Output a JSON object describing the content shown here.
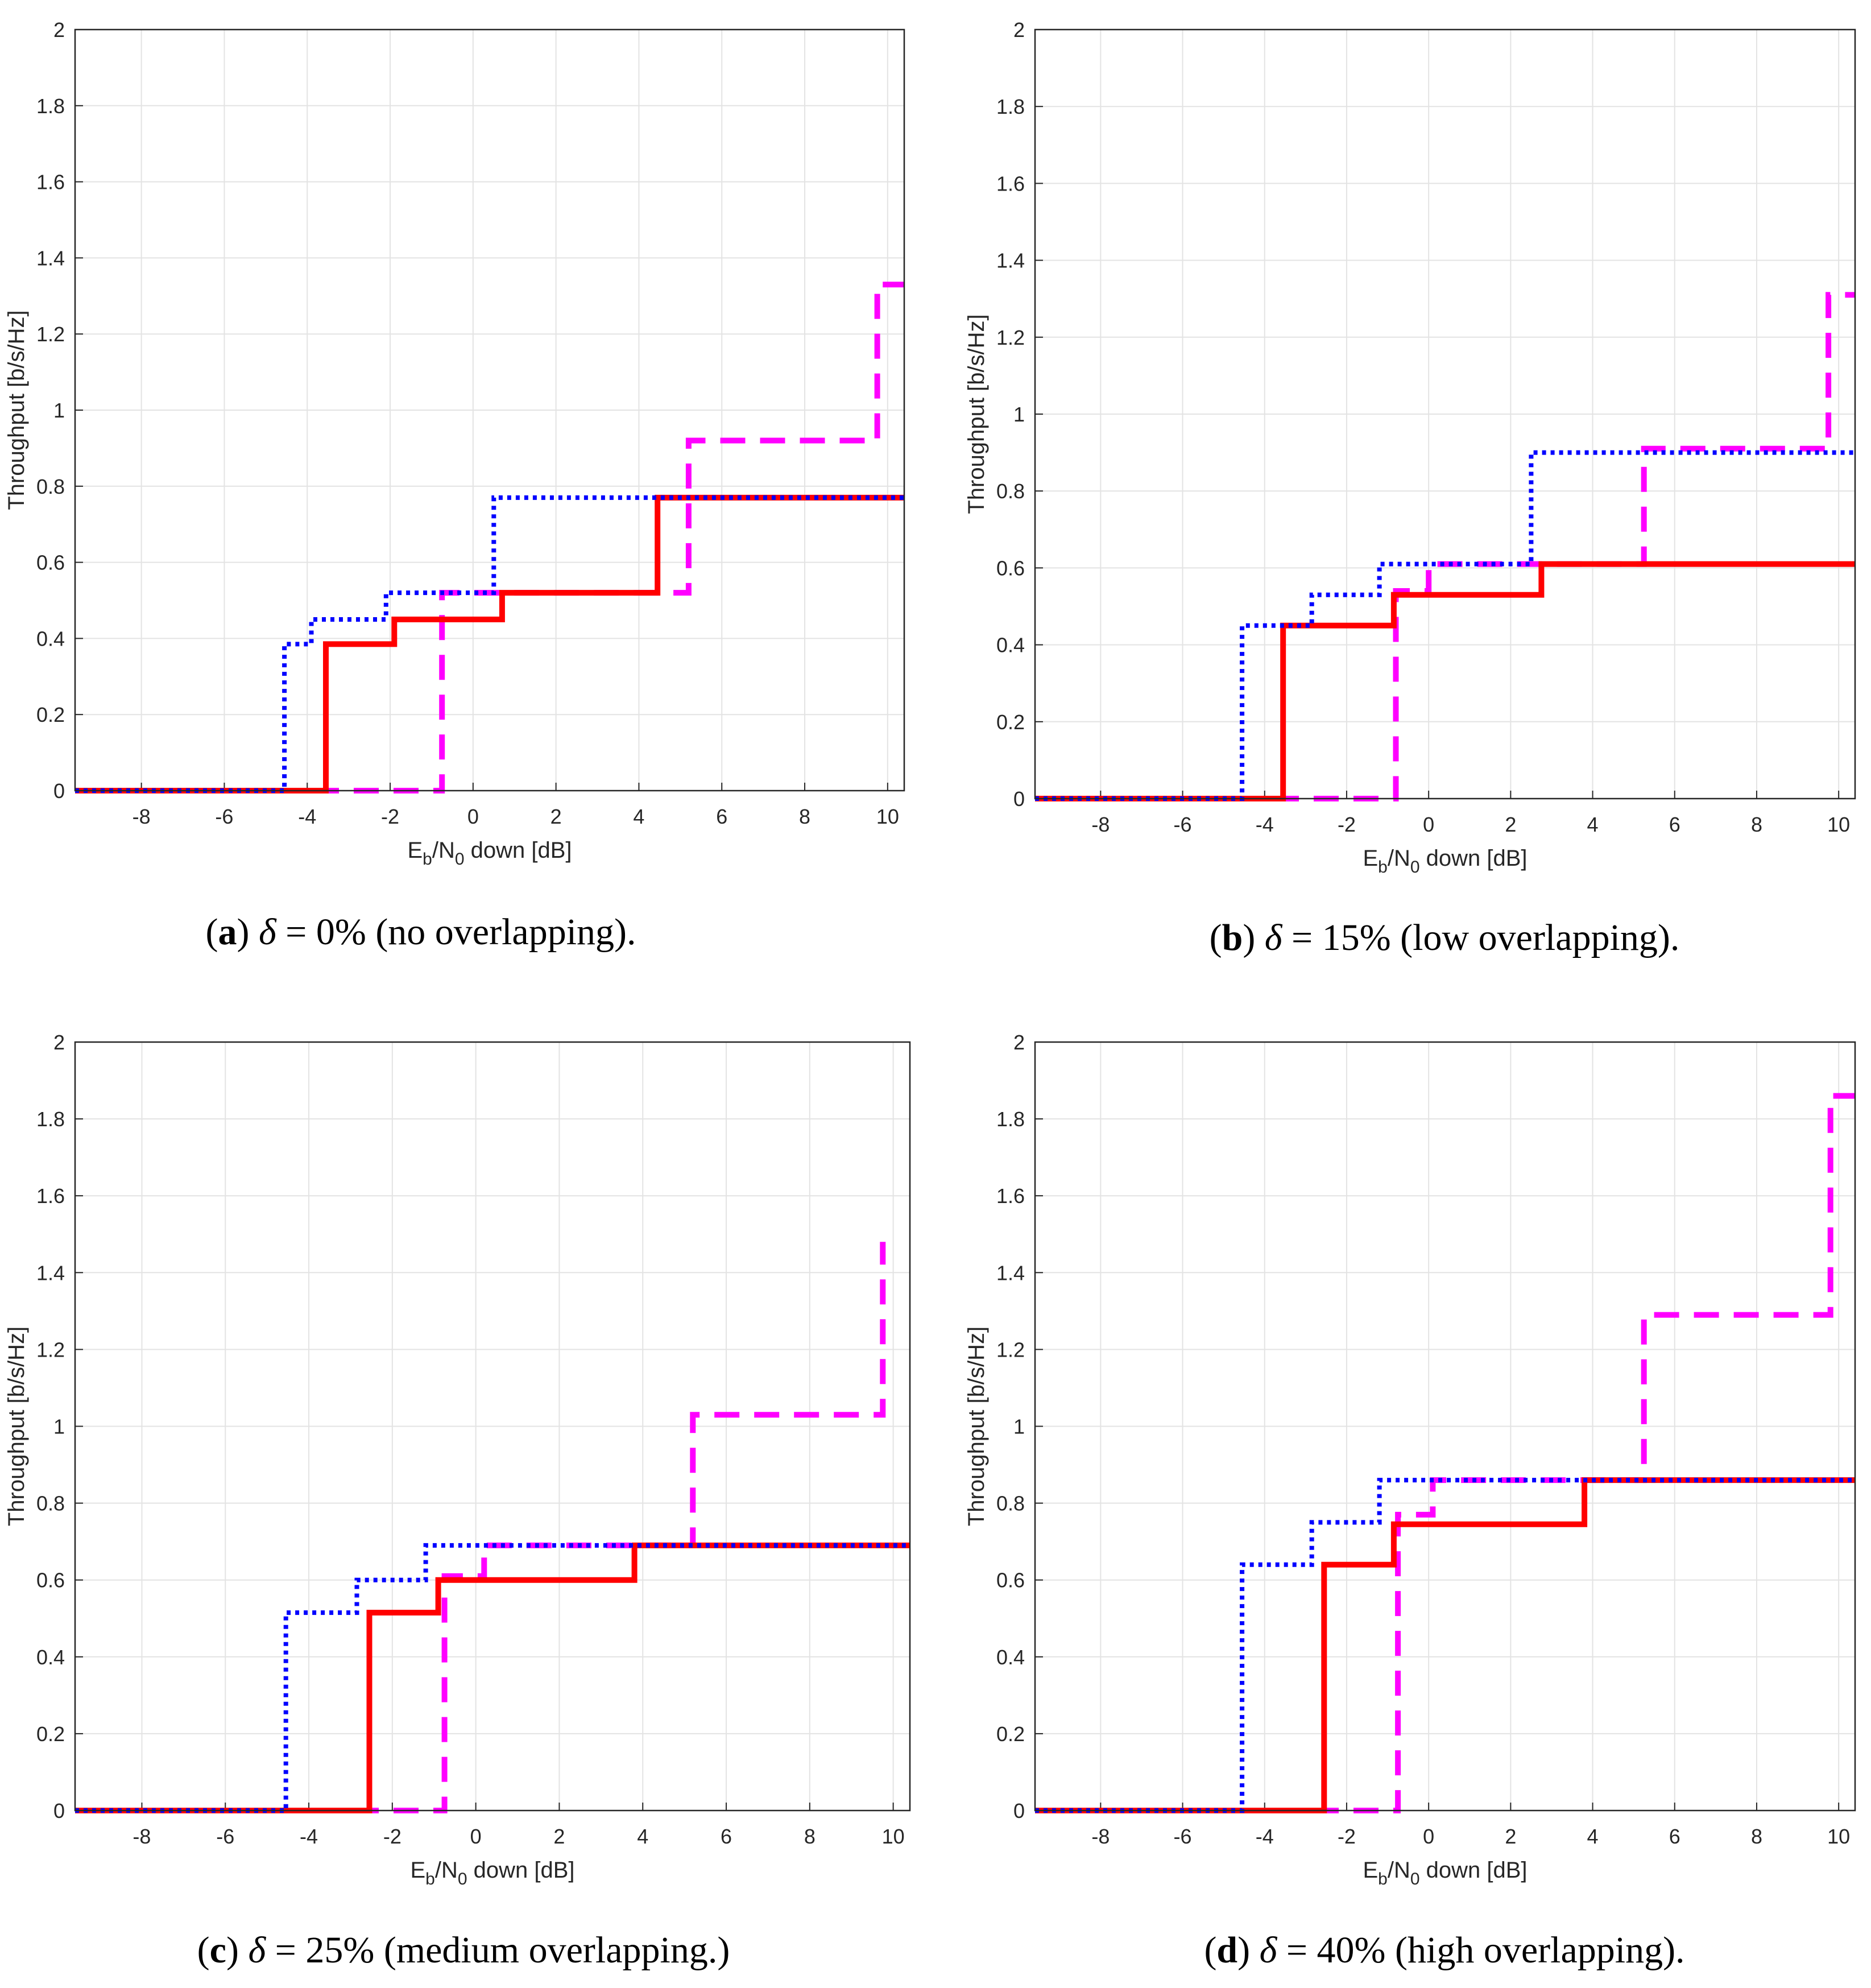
{
  "chart_data": [
    {
      "type": "line",
      "panel": "a",
      "caption": {
        "letter": "a",
        "delta_symbol": "δ",
        "text": " = 0% (no overlapping)."
      },
      "xlabel": {
        "main": "E",
        "sub1": "b",
        "mid": "/N",
        "sub2": "0",
        "tail": " down [dB]"
      },
      "ylabel": "Throughput [b/s/Hz]",
      "xlim": [
        -9.6,
        10.4
      ],
      "ylim": [
        0,
        2
      ],
      "xticks": [
        "-8",
        "-6",
        "-4",
        "-2",
        "0",
        "2",
        "4",
        "6",
        "8",
        "10"
      ],
      "yticks": [
        "0",
        "0.2",
        "0.4",
        "0.6",
        "0.8",
        "1",
        "1.2",
        "1.4",
        "1.6",
        "1.8",
        "2"
      ],
      "grid": true,
      "series": [
        {
          "name": "blue-dotted",
          "color": "#0000ff",
          "style": "dotted",
          "x": [
            -9.6,
            -4.55,
            -4.55,
            -3.9,
            -3.9,
            -2.1,
            -2.1,
            0.5,
            0.5,
            10.4
          ],
          "y": [
            0,
            0,
            0.385,
            0.385,
            0.45,
            0.45,
            0.52,
            0.52,
            0.77,
            0.77
          ]
        },
        {
          "name": "red-solid",
          "color": "#ff0000",
          "style": "solid",
          "x": [
            -9.6,
            -3.55,
            -3.55,
            -1.9,
            -1.9,
            0.7,
            0.7,
            4.45,
            4.45,
            10.4
          ],
          "y": [
            0,
            0,
            0.385,
            0.385,
            0.45,
            0.45,
            0.52,
            0.52,
            0.77,
            0.77
          ]
        },
        {
          "name": "magenta-dashed",
          "color": "#ff00ff",
          "style": "dashed",
          "x": [
            -9.6,
            -0.75,
            -0.75,
            5.2,
            5.2,
            9.75,
            9.75,
            10.4
          ],
          "y": [
            0,
            0,
            0.52,
            0.52,
            0.92,
            0.92,
            1.33,
            1.33
          ]
        }
      ]
    },
    {
      "type": "line",
      "panel": "b",
      "caption": {
        "letter": "b",
        "delta_symbol": "δ",
        "text": " = 15% (low overlapping)."
      },
      "xlabel": {
        "main": "E",
        "sub1": "b",
        "mid": "/N",
        "sub2": "0",
        "tail": " down [dB]"
      },
      "ylabel": "Throughput [b/s/Hz]",
      "xlim": [
        -9.6,
        10.4
      ],
      "ylim": [
        0,
        2
      ],
      "xticks": [
        "-8",
        "-6",
        "-4",
        "-2",
        "0",
        "2",
        "4",
        "6",
        "8",
        "10"
      ],
      "yticks": [
        "0",
        "0.2",
        "0.4",
        "0.6",
        "0.8",
        "1",
        "1.2",
        "1.4",
        "1.6",
        "1.8",
        "2"
      ],
      "grid": true,
      "series": [
        {
          "name": "blue-dotted",
          "color": "#0000ff",
          "style": "dotted",
          "x": [
            -9.6,
            -4.55,
            -4.55,
            -2.85,
            -2.85,
            -1.2,
            -1.2,
            2.5,
            2.5,
            10.4
          ],
          "y": [
            0,
            0,
            0.45,
            0.45,
            0.53,
            0.53,
            0.61,
            0.61,
            0.9,
            0.9
          ]
        },
        {
          "name": "red-solid",
          "color": "#ff0000",
          "style": "solid",
          "x": [
            -9.6,
            -3.55,
            -3.55,
            -0.85,
            -0.85,
            2.75,
            2.75,
            10.4
          ],
          "y": [
            0,
            0,
            0.45,
            0.45,
            0.53,
            0.53,
            0.61,
            0.61
          ]
        },
        {
          "name": "magenta-dashed",
          "color": "#ff00ff",
          "style": "dashed",
          "x": [
            -9.6,
            -0.8,
            -0.8,
            0,
            0,
            5.25,
            5.25,
            9.75,
            9.75,
            10.4
          ],
          "y": [
            0,
            0,
            0.54,
            0.54,
            0.61,
            0.61,
            0.91,
            0.91,
            1.31,
            1.31
          ]
        }
      ]
    },
    {
      "type": "line",
      "panel": "c",
      "caption": {
        "letter": "c",
        "delta_symbol": "δ",
        "text": " = 25% (medium overlapping.)"
      },
      "xlabel": {
        "main": "E",
        "sub1": "b",
        "mid": "/N",
        "sub2": "0",
        "tail": " down [dB]"
      },
      "ylabel": "Throughput [b/s/Hz]",
      "xlim": [
        -9.6,
        10.4
      ],
      "ylim": [
        0,
        2
      ],
      "xticks": [
        "-8",
        "-6",
        "-4",
        "-2",
        "0",
        "2",
        "4",
        "6",
        "8",
        "10"
      ],
      "yticks": [
        "0",
        "0.2",
        "0.4",
        "0.6",
        "0.8",
        "1",
        "1.2",
        "1.4",
        "1.6",
        "1.8",
        "2"
      ],
      "grid": true,
      "series": [
        {
          "name": "blue-dotted",
          "color": "#0000ff",
          "style": "dotted",
          "x": [
            -9.6,
            -4.55,
            -4.55,
            -2.85,
            -2.85,
            -1.2,
            -1.2,
            10.4
          ],
          "y": [
            0,
            0,
            0.515,
            0.515,
            0.6,
            0.6,
            0.69,
            0.69
          ]
        },
        {
          "name": "red-solid",
          "color": "#ff0000",
          "style": "solid",
          "x": [
            -9.6,
            -2.55,
            -2.55,
            -0.9,
            -0.9,
            3.8,
            3.8,
            10.4
          ],
          "y": [
            0,
            0,
            0.515,
            0.515,
            0.6,
            0.6,
            0.69,
            0.69
          ]
        },
        {
          "name": "magenta-dashed",
          "color": "#ff00ff",
          "style": "dashed",
          "x": [
            -9.6,
            -0.75,
            -0.75,
            0.2,
            0.2,
            5.2,
            5.2,
            9.75,
            9.75
          ],
          "y": [
            0,
            0,
            0.61,
            0.61,
            0.69,
            0.69,
            1.03,
            1.03,
            1.48
          ]
        }
      ]
    },
    {
      "type": "line",
      "panel": "d",
      "caption": {
        "letter": "d",
        "delta_symbol": "δ",
        "text": " = 40% (high overlapping)."
      },
      "xlabel": {
        "main": "E",
        "sub1": "b",
        "mid": "/N",
        "sub2": "0",
        "tail": " down [dB]"
      },
      "ylabel": "Throughput [b/s/Hz]",
      "xlim": [
        -9.6,
        10.4
      ],
      "ylim": [
        0,
        2
      ],
      "xticks": [
        "-8",
        "-6",
        "-4",
        "-2",
        "0",
        "2",
        "4",
        "6",
        "8",
        "10"
      ],
      "yticks": [
        "0",
        "0.2",
        "0.4",
        "0.6",
        "0.8",
        "1",
        "1.2",
        "1.4",
        "1.6",
        "1.8",
        "2"
      ],
      "grid": true,
      "series": [
        {
          "name": "blue-dotted",
          "color": "#0000ff",
          "style": "dotted",
          "x": [
            -9.6,
            -4.55,
            -4.55,
            -2.85,
            -2.85,
            -1.2,
            -1.2,
            10.4
          ],
          "y": [
            0,
            0,
            0.64,
            0.64,
            0.75,
            0.75,
            0.86,
            0.86
          ]
        },
        {
          "name": "red-solid",
          "color": "#ff0000",
          "style": "solid",
          "x": [
            -9.6,
            -2.55,
            -2.55,
            -0.85,
            -0.85,
            3.8,
            3.8,
            10.4
          ],
          "y": [
            0,
            0,
            0.64,
            0.64,
            0.745,
            0.745,
            0.86,
            0.86
          ]
        },
        {
          "name": "magenta-dashed",
          "color": "#ff00ff",
          "style": "dashed",
          "x": [
            -9.6,
            -0.75,
            -0.75,
            0.1,
            0.1,
            5.25,
            5.25,
            9.8,
            9.8,
            10.4
          ],
          "y": [
            0,
            0,
            0.77,
            0.77,
            0.86,
            0.86,
            1.29,
            1.29,
            1.86,
            1.86
          ]
        }
      ]
    }
  ]
}
